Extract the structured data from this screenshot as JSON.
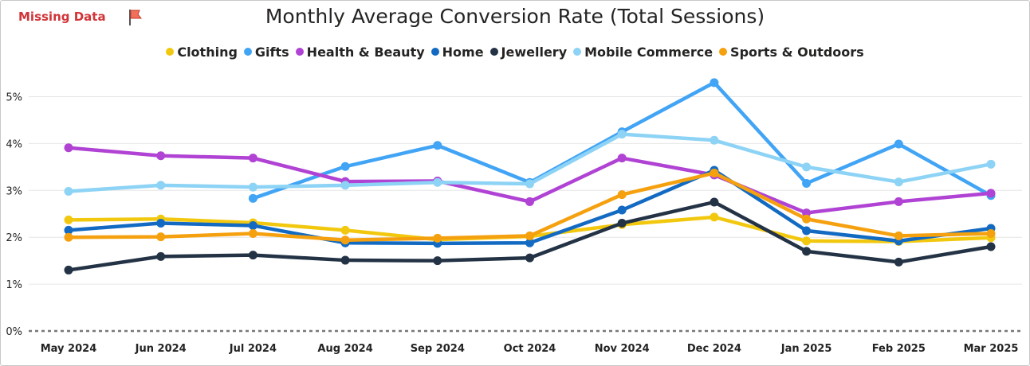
{
  "missing_data_label": "Missing Data",
  "chart_data": {
    "type": "line",
    "title": "Monthly Average Conversion Rate (Total Sessions)",
    "xlabel": "",
    "ylabel": "",
    "ylim": [
      0,
      5.5
    ],
    "y_ticks": [
      "0%",
      "1%",
      "2%",
      "3%",
      "4%",
      "5%"
    ],
    "y_tick_values": [
      0,
      1,
      2,
      3,
      4,
      5
    ],
    "grid": true,
    "legend_position": "top-center",
    "categories": [
      "May 2024",
      "Jun 2024",
      "Jul 2024",
      "Aug 2024",
      "Sep 2024",
      "Oct 2024",
      "Nov 2024",
      "Dec 2024",
      "Jan 2025",
      "Feb 2025",
      "Mar 2025"
    ],
    "series": [
      {
        "name": "Clothing",
        "color": "#f2c80f",
        "values": [
          2.37,
          2.39,
          2.31,
          2.15,
          1.95,
          2.02,
          2.27,
          2.43,
          1.92,
          1.91,
          1.99
        ]
      },
      {
        "name": "Gifts",
        "color": "#41a4f5",
        "values": [
          null,
          null,
          2.83,
          3.51,
          3.96,
          3.17,
          4.25,
          5.3,
          3.15,
          3.99,
          2.89
        ]
      },
      {
        "name": "Health & Beauty",
        "color": "#b042d4",
        "values": [
          3.91,
          3.74,
          3.69,
          3.19,
          3.2,
          2.76,
          3.69,
          3.33,
          2.52,
          2.76,
          2.94
        ]
      },
      {
        "name": "Home",
        "color": "#126ac2",
        "values": [
          2.15,
          2.3,
          2.25,
          1.88,
          1.87,
          1.88,
          2.58,
          3.43,
          2.14,
          1.92,
          2.19
        ]
      },
      {
        "name": "Jewellery",
        "color": "#233345",
        "values": [
          1.3,
          1.59,
          1.62,
          1.51,
          1.5,
          1.56,
          2.3,
          2.75,
          1.7,
          1.47,
          1.8
        ]
      },
      {
        "name": "Mobile Commerce",
        "color": "#8dd3f5",
        "values": [
          2.98,
          3.11,
          3.07,
          3.11,
          3.17,
          3.14,
          4.2,
          4.07,
          3.5,
          3.18,
          3.56
        ]
      },
      {
        "name": "Sports & Outdoors",
        "color": "#f5a10f",
        "values": [
          2.0,
          2.01,
          2.08,
          1.94,
          1.98,
          2.03,
          2.91,
          3.37,
          2.39,
          2.03,
          2.08
        ]
      }
    ]
  }
}
